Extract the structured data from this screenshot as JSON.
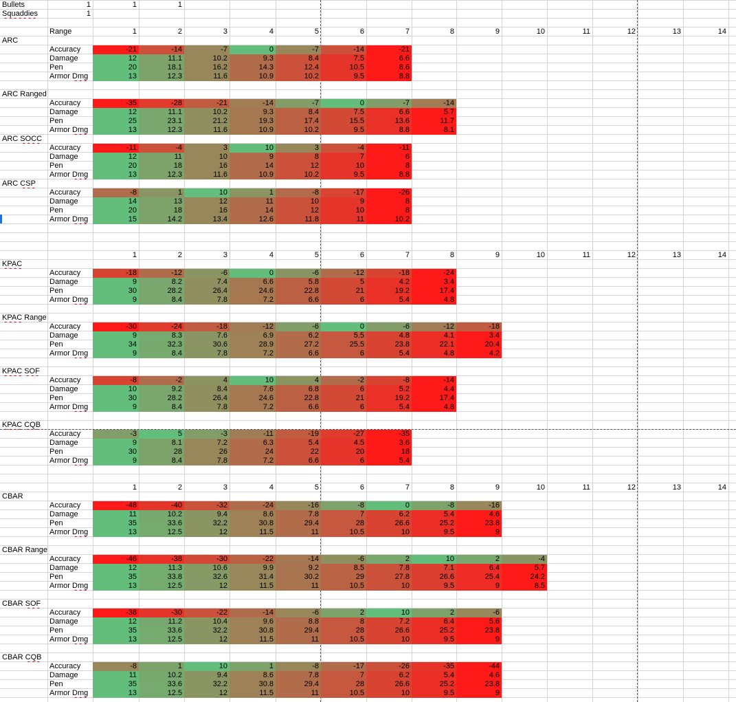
{
  "settings": [
    {
      "label": "Bullets",
      "values": [
        "1",
        "1",
        "1"
      ]
    },
    {
      "label": "Squaddies",
      "values": [
        "1"
      ]
    }
  ],
  "range_label": "Range",
  "range_header": [
    "1",
    "2",
    "3",
    "4",
    "5",
    "6",
    "7",
    "8",
    "9",
    "10",
    "11",
    "12",
    "13",
    "14"
  ],
  "colors": {
    "red": "#ff1a1a",
    "green": "#63be7b",
    "grid": "#d4d4d4",
    "page_break": "#555555",
    "selected_row": "#1e6fd9"
  },
  "sections": [
    {
      "group": "ARC",
      "title": "ARC",
      "metrics": [
        {
          "label": "Accuracy",
          "values": [
            "-21",
            "-14",
            "-7",
            "0",
            "-7",
            "-14",
            "-21"
          ]
        },
        {
          "label": "Damage",
          "values": [
            "12",
            "11.1",
            "10.2",
            "9.3",
            "8.4",
            "7.5",
            "6.6"
          ]
        },
        {
          "label": "Pen",
          "values": [
            "20",
            "18.1",
            "16.2",
            "14.3",
            "12.4",
            "10.5",
            "8.6"
          ]
        },
        {
          "label": "Armor Dmg",
          "values": [
            "13",
            "12.3",
            "11.6",
            "10.9",
            "10.2",
            "9.5",
            "8.8"
          ]
        }
      ]
    },
    {
      "group": "ARC",
      "title": "ARC Ranged",
      "metrics": [
        {
          "label": "Accuracy",
          "values": [
            "-35",
            "-28",
            "-21",
            "-14",
            "-7",
            "0",
            "-7",
            "-14"
          ]
        },
        {
          "label": "Damage",
          "values": [
            "12",
            "11.1",
            "10.2",
            "9.3",
            "8.4",
            "7.5",
            "6.6",
            "5.7"
          ]
        },
        {
          "label": "Pen",
          "values": [
            "25",
            "23.1",
            "21.2",
            "19.3",
            "17.4",
            "15.5",
            "13.6",
            "11.7"
          ]
        },
        {
          "label": "Armor Dmg",
          "values": [
            "13",
            "12.3",
            "11.6",
            "10.9",
            "10.2",
            "9.5",
            "8.8",
            "8.1"
          ]
        }
      ]
    },
    {
      "group": "ARC",
      "title": "ARC SOCC",
      "metrics": [
        {
          "label": "Accuracy",
          "values": [
            "-11",
            "-4",
            "3",
            "10",
            "3",
            "-4",
            "-11"
          ]
        },
        {
          "label": "Damage",
          "values": [
            "12",
            "11",
            "10",
            "9",
            "8",
            "7",
            "6"
          ]
        },
        {
          "label": "Pen",
          "values": [
            "20",
            "18",
            "16",
            "14",
            "12",
            "10",
            "8"
          ]
        },
        {
          "label": "Armor Dmg",
          "values": [
            "13",
            "12.3",
            "11.6",
            "10.9",
            "10.2",
            "9.5",
            "8.8"
          ]
        }
      ]
    },
    {
      "group": "ARC",
      "title": "ARC CSP",
      "metrics": [
        {
          "label": "Accuracy",
          "values": [
            "-8",
            "1",
            "10",
            "1",
            "-8",
            "-17",
            "-26"
          ]
        },
        {
          "label": "Damage",
          "values": [
            "14",
            "13",
            "12",
            "11",
            "10",
            "9",
            "8"
          ]
        },
        {
          "label": "Pen",
          "values": [
            "20",
            "18",
            "16",
            "14",
            "12",
            "10",
            "8"
          ]
        },
        {
          "label": "Armor Dmg",
          "values": [
            "15",
            "14.2",
            "13.4",
            "12.6",
            "11.8",
            "11",
            "10.2"
          ]
        }
      ]
    },
    {
      "group": "KPAC",
      "title": "KPAC",
      "metrics": [
        {
          "label": "Accuracy",
          "values": [
            "-18",
            "-12",
            "-6",
            "0",
            "-6",
            "-12",
            "-18",
            "-24"
          ]
        },
        {
          "label": "Damage",
          "values": [
            "9",
            "8.2",
            "7.4",
            "6.6",
            "5.8",
            "5",
            "4.2",
            "3.4"
          ]
        },
        {
          "label": "Pen",
          "values": [
            "30",
            "28.2",
            "26.4",
            "24.6",
            "22.8",
            "21",
            "19.2",
            "17.4"
          ]
        },
        {
          "label": "Armor Dmg",
          "values": [
            "9",
            "8.4",
            "7.8",
            "7.2",
            "6.6",
            "6",
            "5.4",
            "4.8"
          ]
        }
      ]
    },
    {
      "group": "KPAC",
      "title": "KPAC Range",
      "metrics": [
        {
          "label": "Accuracy",
          "values": [
            "-30",
            "-24",
            "-18",
            "-12",
            "-6",
            "0",
            "-6",
            "-12",
            "-18"
          ]
        },
        {
          "label": "Damage",
          "values": [
            "9",
            "8.3",
            "7.6",
            "6.9",
            "6.2",
            "5.5",
            "4.8",
            "4.1",
            "3.4"
          ]
        },
        {
          "label": "Pen",
          "values": [
            "34",
            "32.3",
            "30.6",
            "28.9",
            "27.2",
            "25.5",
            "23.8",
            "22.1",
            "20.4"
          ]
        },
        {
          "label": "Armor Dmg",
          "values": [
            "9",
            "8.4",
            "7.8",
            "7.2",
            "6.6",
            "6",
            "5.4",
            "4.8",
            "4.2"
          ]
        }
      ]
    },
    {
      "group": "KPAC",
      "title": "KPAC SOF",
      "metrics": [
        {
          "label": "Accuracy",
          "values": [
            "-8",
            "-2",
            "4",
            "10",
            "4",
            "-2",
            "-8",
            "-14"
          ]
        },
        {
          "label": "Damage",
          "values": [
            "10",
            "9.2",
            "8.4",
            "7.6",
            "6.8",
            "6",
            "5.2",
            "4.4"
          ]
        },
        {
          "label": "Pen",
          "values": [
            "30",
            "28.2",
            "26.4",
            "24.6",
            "22.8",
            "21",
            "19.2",
            "17.4"
          ]
        },
        {
          "label": "Armor Dmg",
          "values": [
            "9",
            "8.4",
            "7.8",
            "7.2",
            "6.6",
            "6",
            "5.4",
            "4.8"
          ]
        }
      ]
    },
    {
      "group": "KPAC",
      "title": "KPAC CQB",
      "metrics": [
        {
          "label": "Accuracy",
          "values": [
            "-3",
            "5",
            "-3",
            "-11",
            "-19",
            "-27",
            "-35"
          ]
        },
        {
          "label": "Damage",
          "values": [
            "9",
            "8.1",
            "7.2",
            "6.3",
            "5.4",
            "4.5",
            "3.6"
          ]
        },
        {
          "label": "Pen",
          "values": [
            "30",
            "28",
            "26",
            "24",
            "22",
            "20",
            "18"
          ]
        },
        {
          "label": "Armor Dmg",
          "values": [
            "9",
            "8.4",
            "7.8",
            "7.2",
            "6.6",
            "6",
            "5.4"
          ]
        }
      ]
    },
    {
      "group": "CBAR",
      "title": "CBAR",
      "metrics": [
        {
          "label": "Accuracy",
          "values": [
            "-48",
            "-40",
            "-32",
            "-24",
            "-16",
            "-8",
            "0",
            "-8",
            "-16"
          ]
        },
        {
          "label": "Damage",
          "values": [
            "11",
            "10.2",
            "9.4",
            "8.6",
            "7.8",
            "7",
            "6.2",
            "5.4",
            "4.6"
          ]
        },
        {
          "label": "Pen",
          "values": [
            "35",
            "33.6",
            "32.2",
            "30.8",
            "29.4",
            "28",
            "26.6",
            "25.2",
            "23.8"
          ]
        },
        {
          "label": "Armor Dmg",
          "values": [
            "13",
            "12.5",
            "12",
            "11.5",
            "11",
            "10.5",
            "10",
            "9.5",
            "9"
          ]
        }
      ]
    },
    {
      "group": "CBAR",
      "title": "CBAR Range",
      "metrics": [
        {
          "label": "Accuracy",
          "values": [
            "-46",
            "-38",
            "-30",
            "-22",
            "-14",
            "-6",
            "2",
            "10",
            "2",
            "-4"
          ]
        },
        {
          "label": "Damage",
          "values": [
            "12",
            "11.3",
            "10.6",
            "9.9",
            "9.2",
            "8.5",
            "7.8",
            "7.1",
            "6.4",
            "5.7"
          ]
        },
        {
          "label": "Pen",
          "values": [
            "35",
            "33.8",
            "32.6",
            "31.4",
            "30.2",
            "29",
            "27.8",
            "26.6",
            "25.4",
            "24.2"
          ]
        },
        {
          "label": "Armor Dmg",
          "values": [
            "13",
            "12.5",
            "12",
            "11.5",
            "11",
            "10.5",
            "10",
            "9.5",
            "9",
            "8.5"
          ]
        }
      ]
    },
    {
      "group": "CBAR",
      "title": "CBAR SOF",
      "metrics": [
        {
          "label": "Accuracy",
          "values": [
            "-38",
            "-30",
            "-22",
            "-14",
            "-6",
            "2",
            "10",
            "2",
            "-6"
          ]
        },
        {
          "label": "Damage",
          "values": [
            "12",
            "11.2",
            "10.4",
            "9.6",
            "8.8",
            "8",
            "7.2",
            "6.4",
            "5.6"
          ]
        },
        {
          "label": "Pen",
          "values": [
            "35",
            "33.6",
            "32.2",
            "30.8",
            "29.4",
            "28",
            "26.6",
            "25.2",
            "23.8"
          ]
        },
        {
          "label": "Armor Dmg",
          "values": [
            "13",
            "12.5",
            "12",
            "11.5",
            "11",
            "10.5",
            "10",
            "9.5",
            "9"
          ]
        }
      ]
    },
    {
      "group": "CBAR",
      "title": "CBAR CQB",
      "metrics": [
        {
          "label": "Accuracy",
          "values": [
            "-8",
            "1",
            "10",
            "1",
            "-8",
            "-17",
            "-26",
            "-35",
            "-44"
          ]
        },
        {
          "label": "Damage",
          "values": [
            "11",
            "10.2",
            "9.4",
            "8.6",
            "7.8",
            "7",
            "6.2",
            "5.4",
            "4.6"
          ]
        },
        {
          "label": "Pen",
          "values": [
            "35",
            "33.6",
            "32.2",
            "30.8",
            "29.4",
            "28",
            "26.6",
            "25.2",
            "23.8"
          ]
        },
        {
          "label": "Armor Dmg",
          "values": [
            "13",
            "12.5",
            "12",
            "11.5",
            "11",
            "10.5",
            "10",
            "9.5",
            "9"
          ]
        }
      ]
    }
  ]
}
